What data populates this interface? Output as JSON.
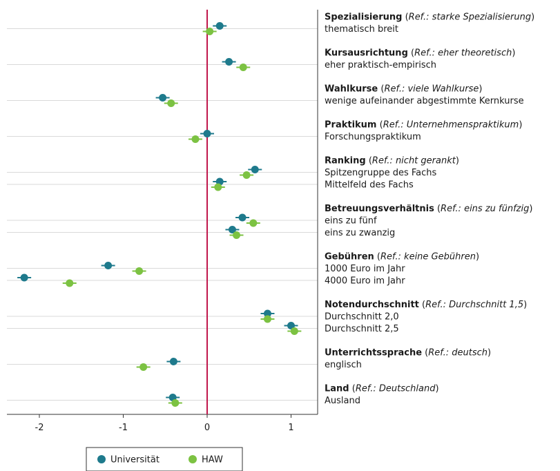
{
  "chart_data": {
    "type": "scatter",
    "xlim": [
      -2.3,
      1.3
    ],
    "x_ticks": [
      -2,
      -1,
      0,
      1
    ],
    "x_tick_labels": [
      "-2",
      "-1",
      "0",
      "1"
    ],
    "reference_line": 0,
    "colors": {
      "universitaet": "#1e7a8c",
      "haw": "#7cc242",
      "ref_line": "#c0174b",
      "grid": "#d9d9d9"
    },
    "legend": [
      {
        "key": "universitaet",
        "label": "Universität"
      },
      {
        "key": "haw",
        "label": "HAW"
      }
    ],
    "groups": [
      {
        "title": "Spezialisierung",
        "ref": "Ref.: starke Spezialisierung",
        "items": [
          {
            "label": "thematisch breit",
            "universitaet": 0.15,
            "haw": 0.03
          }
        ]
      },
      {
        "title": "Kursausrichtung",
        "ref": "Ref.: eher theoretisch",
        "items": [
          {
            "label": "eher praktisch-empirisch",
            "universitaet": 0.26,
            "haw": 0.43
          }
        ]
      },
      {
        "title": "Wahlkurse",
        "ref": "Ref.: viele Wahlkurse",
        "items": [
          {
            "label": "wenige aufeinander abgestimmte Kernkurse",
            "universitaet": -0.53,
            "haw": -0.43
          }
        ]
      },
      {
        "title": "Praktikum",
        "ref": "Ref.: Unternehmenspraktikum",
        "items": [
          {
            "label": "Forschungspraktikum",
            "universitaet": 0.0,
            "haw": -0.14
          }
        ]
      },
      {
        "title": "Ranking",
        "ref": "Ref.: nicht gerankt",
        "items": [
          {
            "label": "Spitzengruppe des Fachs",
            "universitaet": 0.57,
            "haw": 0.47
          },
          {
            "label": "Mittelfeld des Fachs",
            "universitaet": 0.15,
            "haw": 0.13
          }
        ]
      },
      {
        "title": "Betreuungsverhältnis",
        "ref": "Ref.: eins zu fünfzig",
        "items": [
          {
            "label": "eins zu fünf",
            "universitaet": 0.42,
            "haw": 0.55
          },
          {
            "label": "eins zu zwanzig",
            "universitaet": 0.3,
            "haw": 0.35
          }
        ]
      },
      {
        "title": "Gebühren",
        "ref": "Ref.: keine Gebühren",
        "items": [
          {
            "label": "1000 Euro im Jahr",
            "universitaet": -1.18,
            "haw": -0.81
          },
          {
            "label": "4000 Euro im Jahr",
            "universitaet": -2.18,
            "haw": -1.64
          }
        ]
      },
      {
        "title": "Notendurchschnitt",
        "ref": "Ref.: Durchschnitt 1,5",
        "items": [
          {
            "label": "Durchschnitt 2,0",
            "universitaet": 0.72,
            "haw": 0.72
          },
          {
            "label": "Durchschnitt 2,5",
            "universitaet": 1.0,
            "haw": 1.04
          }
        ]
      },
      {
        "title": "Unterrichtssprache",
        "ref": "Ref.: deutsch",
        "items": [
          {
            "label": "englisch",
            "universitaet": -0.4,
            "haw": -0.76
          }
        ]
      },
      {
        "title": "Land",
        "ref": "Ref.: Deutschland",
        "items": [
          {
            "label": "Ausland",
            "universitaet": -0.41,
            "haw": -0.38
          }
        ]
      }
    ]
  }
}
